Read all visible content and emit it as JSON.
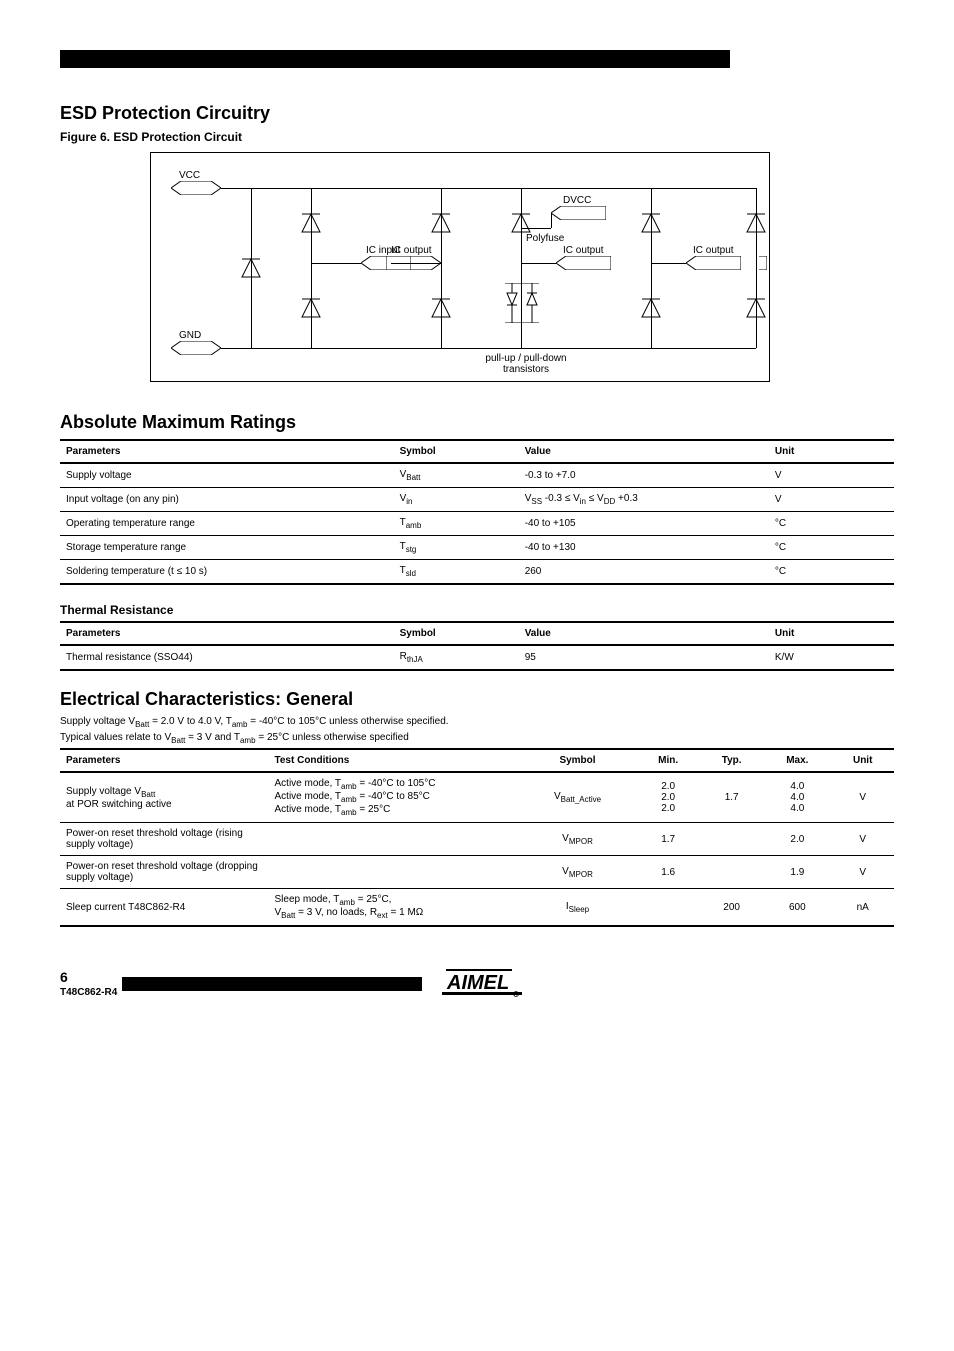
{
  "page": {
    "number": "6",
    "product": "T48C862-R4"
  },
  "esd": {
    "heading": "ESD Protection Circuitry",
    "figure_caption": "Figure 6.  ESD Protection Circuit",
    "diagram": {
      "ports": {
        "vcc": "VCC",
        "gnd": "GND",
        "ic_input": "IC input",
        "ic_output": "IC output",
        "dvcc": "DVCC",
        "polyfuse": "Polyfuse",
        "pull_up_down": "pull-up / pull-down\ntransistors",
        "ic_output_4": "IC output",
        "ic_output_5": "IC output"
      }
    }
  },
  "absmax": {
    "heading": "Absolute Maximum Ratings",
    "columns": [
      "Parameters",
      "Symbol",
      "Value",
      "Unit"
    ],
    "rows": [
      [
        "Supply voltage",
        "V_Batt",
        "-0.3 to +7.0",
        "V"
      ],
      [
        "Input voltage (on any pin)",
        "V_in",
        "V_SS -0.3 ≤ V_in ≤ V_DD +0.3",
        "V"
      ],
      [
        "Operating temperature range",
        "T_amb",
        "-40 to +105",
        "°C"
      ],
      [
        "Storage temperature range",
        "T_stg",
        "-40 to +130",
        "°C"
      ],
      [
        "Soldering temperature (t ≤ 10 s)",
        "T_sld",
        "260",
        "°C"
      ]
    ]
  },
  "thermal": {
    "heading": "Thermal Resistance",
    "columns": [
      "Parameters",
      "Symbol",
      "Value",
      "Unit"
    ],
    "rows": [
      [
        "Thermal resistance (SSO44)",
        "R_thJA",
        "95",
        "K/W"
      ]
    ]
  },
  "elec": {
    "heading": "Electrical Characteristics: General",
    "cond1": "Supply voltage V_Batt = 2.0 V to 4.0 V, T_amb = -40°C to 105°C unless otherwise specified.",
    "cond2": "Typical values relate to V_Batt = 3 V and T_amb = 25°C unless otherwise specified",
    "columns": [
      "Parameters",
      "Test Conditions",
      "Symbol",
      "Min.",
      "Typ.",
      "Max.",
      "Unit"
    ],
    "rows": [
      {
        "param": "Supply voltage V_Batt\nat POR switching active",
        "cond": "Active mode, T_amb = -40°C to 105°C\nActive mode, T_amb = -40°C to 85°C\nActive mode, T_amb = 25°C",
        "symbol": "V_Batt_Active",
        "min": "2.0\n2.0\n2.0",
        "typ": "1.7",
        "max": "4.0\n4.0\n4.0",
        "unit": "V"
      },
      {
        "param": "Power-on reset threshold voltage (rising supply voltage)",
        "cond": "",
        "symbol": "V_MPOR",
        "min": "1.7",
        "typ": "",
        "max": "2.0",
        "unit": "V"
      },
      {
        "param": "Power-on reset threshold voltage (dropping supply voltage)",
        "cond": "",
        "symbol": "V_MPOR",
        "min": "1.6",
        "typ": "",
        "max": "1.9",
        "unit": "V"
      },
      {
        "param": "Sleep current T48C862-R4",
        "cond": "Sleep mode, T_amb = 25°C,\nV_Batt = 3 V, no loads, R_ext = 1 MΩ",
        "symbol": "I_Sleep",
        "min": "",
        "typ": "200",
        "max": "600",
        "unit": "nA"
      }
    ]
  }
}
